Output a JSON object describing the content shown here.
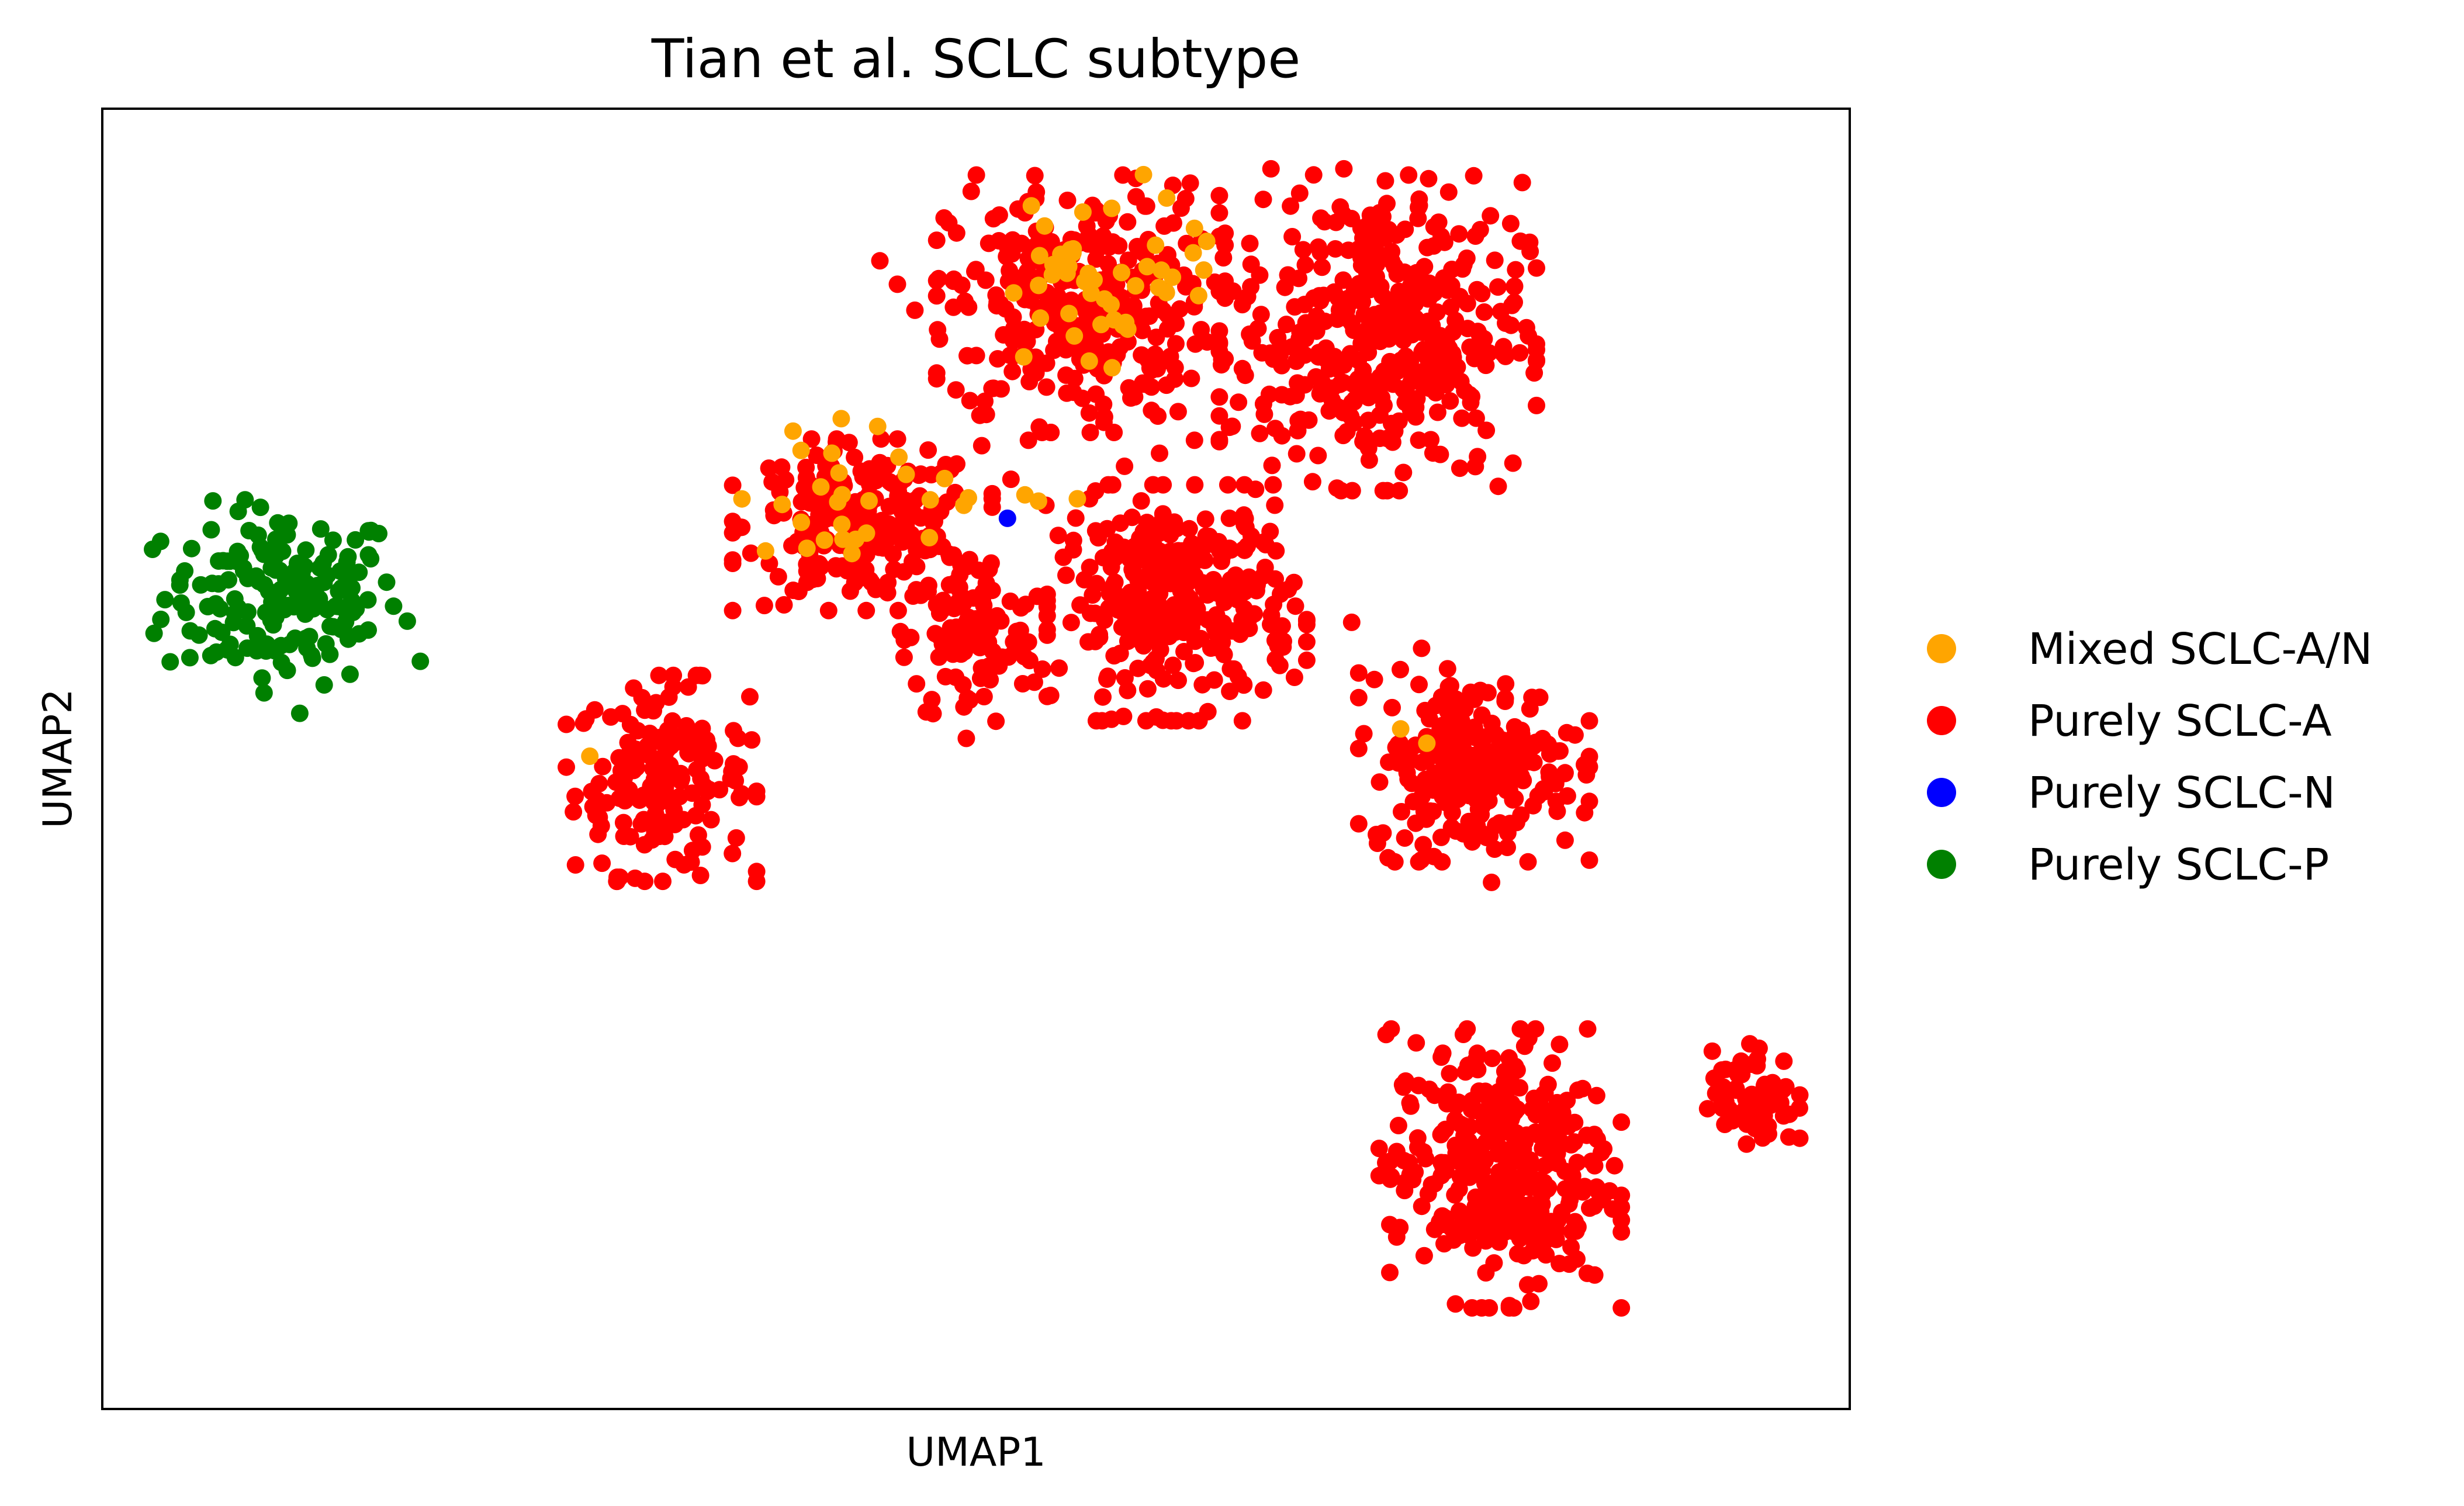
{
  "chart_data": {
    "type": "scatter",
    "title": "Tian et al. SCLC subtype",
    "xlabel": "UMAP1",
    "ylabel": "UMAP2",
    "xlim": [
      0,
      100
    ],
    "ylim": [
      0,
      100
    ],
    "ticks_visible": false,
    "grid": false,
    "legend_position": "right outside",
    "colors": {
      "Mixed SCLC-A/N": "#ffa500",
      "Purely SCLC-A": "#ff0000",
      "Purely SCLC-N": "#0000ff",
      "Purely SCLC-P": "#008000"
    },
    "legend": [
      "Mixed SCLC-A/N",
      "Purely SCLC-A",
      "Purely SCLC-N",
      "Purely SCLC-P"
    ],
    "series": [
      {
        "name": "Purely SCLC-P",
        "clusters": [
          {
            "center": [
              10.3,
              62.5
            ],
            "spread": [
              4.5,
              4.5
            ],
            "count": 170
          }
        ],
        "points": [
          [
            18.2,
            57.5
          ],
          [
            11.3,
            53.5
          ]
        ]
      },
      {
        "name": "Purely SCLC-A",
        "clusters": [
          {
            "center": [
              32.0,
              48.5
            ],
            "spread": [
              3.3,
              4.8
            ],
            "count": 170
          },
          {
            "center": [
              43.5,
              68.0
            ],
            "spread": [
              4.5,
              4.0
            ],
            "count": 240
          },
          {
            "center": [
              49.8,
              59.0
            ],
            "spread": [
              2.5,
              4.5
            ],
            "count": 110
          },
          {
            "center": [
              56.0,
              85.0
            ],
            "spread": [
              5.0,
              6.0
            ],
            "count": 330
          },
          {
            "center": [
              61.5,
              62.0
            ],
            "spread": [
              4.5,
              5.5
            ],
            "count": 320
          },
          {
            "center": [
              73.0,
              83.0
            ],
            "spread": [
              5.5,
              7.5
            ],
            "count": 420
          },
          {
            "center": [
              78.5,
              49.5
            ],
            "spread": [
              4.0,
              4.5
            ],
            "count": 240
          },
          {
            "center": [
              80.0,
              18.5
            ],
            "spread": [
              4.2,
              6.5
            ],
            "count": 350
          },
          {
            "center": [
              94.5,
              24.0
            ],
            "spread": [
              1.6,
              2.5
            ],
            "count": 70
          }
        ],
        "points": [
          [
            44.5,
            88.3
          ],
          [
            45.5,
            86.5
          ],
          [
            46.5,
            84.5
          ],
          [
            47.8,
            83.0
          ],
          [
            49.5,
            81.0
          ],
          [
            51.0,
            78.5
          ],
          [
            53.0,
            74.5
          ],
          [
            52.0,
            71.5
          ],
          [
            54.0,
            69.5
          ],
          [
            56.5,
            70.0
          ],
          [
            58.5,
            72.5
          ],
          [
            60.5,
            73.5
          ],
          [
            62.5,
            74.5
          ],
          [
            64.5,
            75.5
          ],
          [
            66.5,
            76.5
          ],
          [
            67.5,
            78.0
          ],
          [
            55.0,
            65.5
          ],
          [
            57.0,
            67.0
          ],
          [
            53.5,
            62.5
          ],
          [
            64.5,
            68.5
          ],
          [
            71.5,
            60.5
          ],
          [
            79.5,
            40.5
          ],
          [
            80.5,
            27.0
          ],
          [
            83.5,
            20.5
          ],
          [
            75.5,
            58.5
          ],
          [
            50.5,
            77.5
          ],
          [
            48.5,
            65.5
          ]
        ]
      },
      {
        "name": "Mixed SCLC-A/N",
        "clusters": [
          {
            "center": [
              57.5,
              87.5
            ],
            "spread": [
              4.2,
              4.5
            ],
            "count": 45
          },
          {
            "center": [
              44.5,
              70.5
            ],
            "spread": [
              5.5,
              3.5
            ],
            "count": 28
          }
        ],
        "points": [
          [
            27.9,
            50.2
          ],
          [
            74.3,
            52.3
          ],
          [
            75.8,
            51.2
          ],
          [
            62.5,
            90.8
          ],
          [
            63.2,
            89.8
          ],
          [
            55.8,
            70.0
          ],
          [
            52.8,
            70.3
          ],
          [
            49.3,
            69.5
          ]
        ]
      },
      {
        "name": "Purely SCLC-N",
        "clusters": [],
        "points": [
          [
            51.8,
            68.5
          ]
        ]
      }
    ]
  }
}
